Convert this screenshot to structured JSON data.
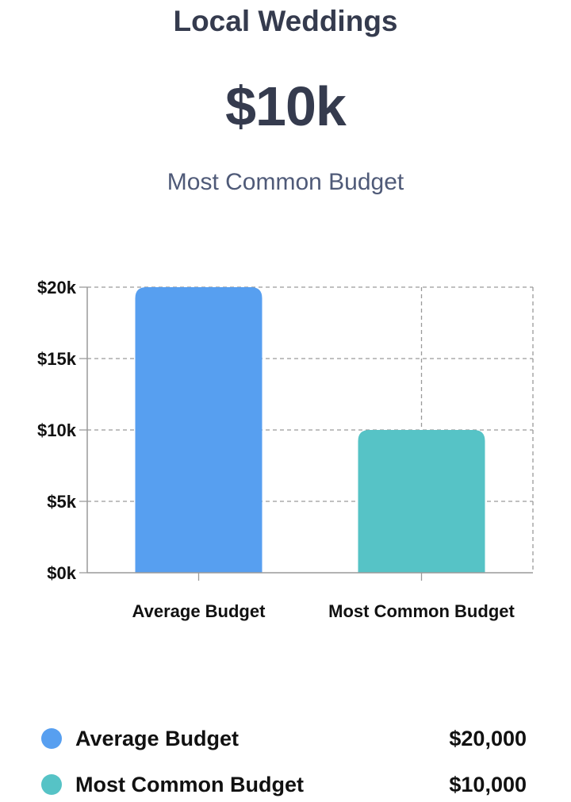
{
  "header": {
    "title": "Local Weddings",
    "headline_value": "$10k",
    "subtitle": "Most Common Budget"
  },
  "chart_data": {
    "type": "bar",
    "categories": [
      "Average Budget",
      "Most Common Budget"
    ],
    "values": [
      20000,
      10000
    ],
    "colors": [
      "#579ff0",
      "#56c3c6"
    ],
    "ylim": [
      0,
      20000
    ],
    "yticks": [
      0,
      5000,
      10000,
      15000,
      20000
    ],
    "ytick_labels": [
      "$0k",
      "$5k",
      "$10k",
      "$15k",
      "$20k"
    ],
    "grid": true,
    "xlabel": "",
    "ylabel": ""
  },
  "legend": {
    "items": [
      {
        "label": "Average Budget",
        "value": "$20,000",
        "color": "#579ff0"
      },
      {
        "label": "Most Common Budget",
        "value": "$10,000",
        "color": "#56c3c6"
      }
    ]
  }
}
